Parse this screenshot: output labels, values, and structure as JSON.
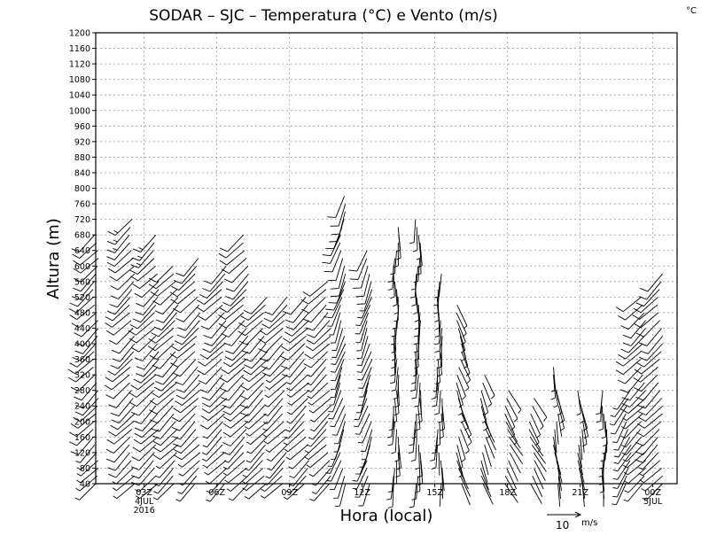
{
  "chart_data": {
    "type": "wind-barb",
    "title": "SODAR – SJC – Temperatura (°C) e Vento (m/s)",
    "corner_unit": "°C",
    "xlabel": "Hora (local)",
    "ylabel": "Altura (m)",
    "ylim": [
      40,
      1200
    ],
    "y_ticks": [
      40,
      80,
      120,
      160,
      200,
      240,
      280,
      320,
      360,
      400,
      440,
      480,
      520,
      560,
      600,
      640,
      680,
      720,
      760,
      800,
      840,
      880,
      920,
      960,
      1000,
      1040,
      1080,
      1120,
      1160,
      1200
    ],
    "xlim_hours": [
      0,
      24
    ],
    "x_ticks": [
      {
        "hour": 2,
        "label": "03Z",
        "sub": "4JUL",
        "sub2": "2016"
      },
      {
        "hour": 5,
        "label": "06Z"
      },
      {
        "hour": 8,
        "label": "09Z"
      },
      {
        "hour": 11,
        "label": "12Z"
      },
      {
        "hour": 14,
        "label": "15Z"
      },
      {
        "hour": 17,
        "label": "18Z"
      },
      {
        "hour": 20,
        "label": "21Z"
      },
      {
        "hour": 23,
        "label": "00Z",
        "sub": "5JUL"
      }
    ],
    "reference_vector": {
      "speed": 10,
      "label": "10",
      "unit": "m/s"
    },
    "profiles": [
      {
        "hour": 0.0,
        "top": 680,
        "dir": 225,
        "spd": 12
      },
      {
        "hour": 1.5,
        "top": 720,
        "dir": 225,
        "spd": 13
      },
      {
        "hour": 2.5,
        "top": 680,
        "dir": 225,
        "spd": 13
      },
      {
        "hour": 3.3,
        "top": 600,
        "dir": 225,
        "spd": 12
      },
      {
        "hour": 4.2,
        "top": 620,
        "dir": 225,
        "spd": 12
      },
      {
        "hour": 5.3,
        "top": 600,
        "dir": 225,
        "spd": 11
      },
      {
        "hour": 6.2,
        "top": 680,
        "dir": 225,
        "spd": 12
      },
      {
        "hour": 7.0,
        "top": 520,
        "dir": 225,
        "spd": 10
      },
      {
        "hour": 7.8,
        "top": 520,
        "dir": 225,
        "spd": 9
      },
      {
        "hour": 8.7,
        "top": 520,
        "dir": 225,
        "spd": 9
      },
      {
        "hour": 9.6,
        "top": 560,
        "dir": 225,
        "spd": 9
      },
      {
        "hour": 10.2,
        "top": 780,
        "dir": 200,
        "spd": 9
      },
      {
        "hour": 11.3,
        "top": 640,
        "dir": 200,
        "spd": 8
      },
      {
        "hour": 12.4,
        "top": 700,
        "dir": 180,
        "spd": 6
      },
      {
        "hour": 13.3,
        "top": 720,
        "dir": 180,
        "spd": 6
      },
      {
        "hour": 14.2,
        "top": 580,
        "dir": 180,
        "spd": 4
      },
      {
        "hour": 15.0,
        "top": 510,
        "dir": 160,
        "spd": 4
      },
      {
        "hour": 16.0,
        "top": 320,
        "dir": 160,
        "spd": 3
      },
      {
        "hour": 17.0,
        "top": 280,
        "dir": 150,
        "spd": 3
      },
      {
        "hour": 18.0,
        "top": 260,
        "dir": 150,
        "spd": 3
      },
      {
        "hour": 19.0,
        "top": 340,
        "dir": 170,
        "spd": 3
      },
      {
        "hour": 20.0,
        "top": 280,
        "dir": 170,
        "spd": 3
      },
      {
        "hour": 21.0,
        "top": 280,
        "dir": 180,
        "spd": 4
      },
      {
        "hour": 22.0,
        "top": 280,
        "dir": 210,
        "spd": 6
      },
      {
        "hour": 22.6,
        "top": 520,
        "dir": 225,
        "spd": 10
      },
      {
        "hour": 23.3,
        "top": 580,
        "dir": 225,
        "spd": 12
      }
    ]
  }
}
